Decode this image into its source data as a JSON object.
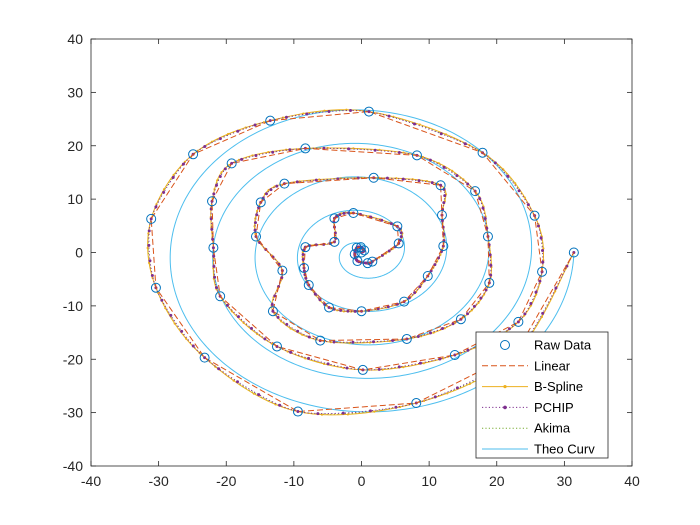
{
  "chart_data": {
    "type": "line",
    "title": "",
    "xlabel": "",
    "ylabel": "",
    "xlim": [
      -40,
      40
    ],
    "ylim": [
      -40,
      40
    ],
    "xticks": [
      -40,
      -30,
      -20,
      -10,
      0,
      10,
      20,
      30,
      40
    ],
    "yticks": [
      -40,
      -30,
      -20,
      -10,
      0,
      10,
      20,
      30,
      40
    ],
    "grid": false,
    "legend_position": "bottom-right",
    "spiral_model": {
      "a": 0,
      "b": 1,
      "theta_max_rad": 31.4
    },
    "raw_data": {
      "x": [
        0.0,
        0.4,
        -0.1,
        -0.7,
        -1.0,
        -0.6,
        0.9,
        1.6,
        5.5,
        5.3,
        -1.2,
        -4.0,
        -4.0,
        -8.3,
        -8.5,
        -7.8,
        -4.8,
        0.0,
        6.3,
        9.8,
        12.1,
        11.9,
        11.7,
        1.8,
        -11.4,
        -14.9,
        -15.6,
        -11.7,
        -13.1,
        -6.1,
        6.7,
        14.7,
        18.9,
        18.7,
        16.8,
        8.2,
        -8.3,
        -19.2,
        -22.1,
        -21.9,
        -20.9,
        -12.5,
        0.2,
        13.8,
        23.2,
        26.7,
        25.6,
        17.9,
        1.1,
        -13.5,
        -24.9,
        -31.1,
        -30.4,
        -23.2,
        -9.4,
        8.1,
        22.8,
        31.4
      ],
      "y": [
        0.0,
        0.4,
        1.0,
        0.9,
        -0.3,
        -1.6,
        -2.0,
        -1.7,
        1.7,
        4.9,
        7.4,
        6.4,
        2.0,
        1.0,
        -2.9,
        -6.1,
        -10.3,
        -11.0,
        -9.2,
        -4.4,
        1.2,
        7.0,
        12.6,
        14.0,
        12.9,
        9.4,
        3.0,
        -3.4,
        -11.0,
        -16.5,
        -16.2,
        -12.5,
        -5.7,
        3.0,
        11.5,
        18.2,
        19.5,
        16.7,
        9.6,
        0.9,
        -8.2,
        -17.6,
        -22.0,
        -19.2,
        -13.0,
        -3.6,
        6.9,
        18.7,
        26.4,
        24.7,
        18.4,
        6.3,
        -6.6,
        -19.7,
        -29.8,
        -28.2,
        -18.9,
        -0.0
      ]
    },
    "series": [
      {
        "name": "Raw Data",
        "style": "circle-markers",
        "color": "#0072BD"
      },
      {
        "name": "Linear",
        "style": "dashed",
        "color": "#D95319"
      },
      {
        "name": "B-Spline",
        "style": "solid-dot-markers",
        "color": "#EDB120"
      },
      {
        "name": "PCHIP",
        "style": "dotted-dot-markers",
        "color": "#7E2F8E"
      },
      {
        "name": "Akima",
        "style": "dotted",
        "color": "#77AC30"
      },
      {
        "name": "Theo Curv",
        "style": "solid",
        "color": "#4DBEEE"
      }
    ]
  }
}
